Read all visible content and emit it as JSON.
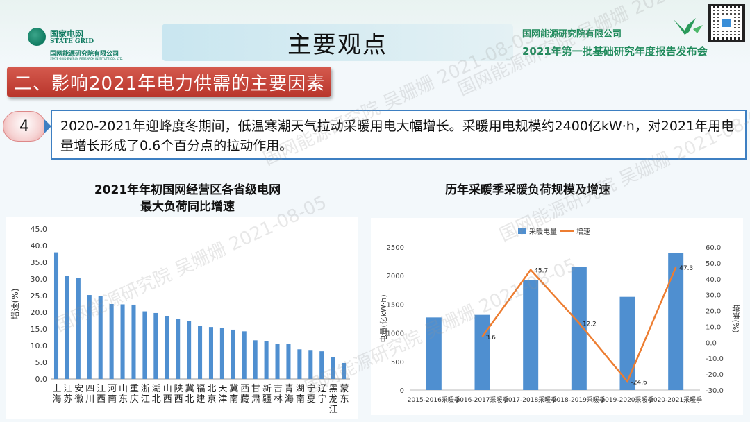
{
  "header": {
    "logo": {
      "cn": "国家电网",
      "en": "STATE GRID",
      "sub": "国网能源研究院有限公司",
      "sub_en": "STATE GRID ENERGY RESEARCH INSTITUTE CO., LTD."
    },
    "title": "主要观点",
    "org_name": "国网能源研究院有限公司",
    "event": "2021年第一批基础研究年度报告发布会"
  },
  "section": {
    "title": "二、影响2021年电力供需的主要因素"
  },
  "point": {
    "number": "4",
    "text": "2020-2021年迎峰度冬期间，低温寒潮天气拉动采暖用电大幅增长。采暖用电规模约2400亿kW·h，对2021年用电量增长形成了0.6个百分点的拉动作用。"
  },
  "watermark": "国网能源研究院 吴姗姗 2021-08-05",
  "chart_data": [
    {
      "type": "bar",
      "title": "2021年年初国网经营区各省级电网最大负荷同比增速",
      "title_line1": "2021年年初国网经营区各省级电网",
      "title_line2": "最大负荷同比增速",
      "ylabel": "增速(%)",
      "ylim": [
        0,
        45
      ],
      "yticks": [
        "0.0",
        "5.0",
        "10.0",
        "15.0",
        "20.0",
        "25.0",
        "30.0",
        "35.0",
        "40.0",
        "45.0"
      ],
      "categories": [
        "上海",
        "江苏",
        "安徽",
        "四川",
        "江西",
        "河南",
        "山东",
        "重庆",
        "浙江",
        "湖北",
        "山西",
        "陕西",
        "冀北",
        "福建",
        "北京",
        "天津",
        "冀南",
        "西藏",
        "甘肃",
        "新疆",
        "吉林",
        "青海",
        "湖南",
        "宁夏",
        "辽宁",
        "黑龙江",
        "蒙东"
      ],
      "values": [
        38.0,
        31.0,
        30.3,
        25.2,
        24.8,
        22.5,
        22.4,
        22.3,
        20.3,
        19.8,
        18.8,
        18.0,
        17.5,
        16.0,
        15.6,
        15.4,
        14.8,
        14.3,
        11.6,
        11.3,
        10.6,
        10.5,
        8.9,
        8.7,
        8.3,
        6.6,
        4.8
      ],
      "color": "#4f8fd0"
    },
    {
      "type": "bar",
      "title": "历年采暖季采暖负荷规模及增速",
      "categories": [
        "2015-2016采暖季",
        "2016-2017采暖季",
        "2017-2018采暖季",
        "2018-2019采暖季",
        "2019-2020采暖季",
        "2020-2021采暖季"
      ],
      "series": [
        {
          "name": "采暖电量",
          "type": "bar",
          "axis": "left",
          "values": [
            1270,
            1315,
            1920,
            2160,
            1630,
            2400
          ],
          "color": "#4f8fd0"
        },
        {
          "name": "增速",
          "type": "line",
          "axis": "right",
          "values": [
            null,
            3.6,
            45.7,
            12.2,
            -24.6,
            47.3
          ],
          "labels": [
            "",
            "3.6",
            "45.7",
            "12.2",
            "-24.6",
            "47.3"
          ],
          "color": "#ed7d31"
        }
      ],
      "ylabel": "电量(亿kW·h)",
      "y2label": "增速(%)",
      "ylim": [
        0,
        2500
      ],
      "y2lim": [
        -30,
        60
      ],
      "yticks": [
        "0",
        "500",
        "1000",
        "1500",
        "2000",
        "2500"
      ],
      "y2ticks": [
        "-30.0",
        "-20.0",
        "-10.0",
        "0.0",
        "10.0",
        "20.0",
        "30.0",
        "40.0",
        "50.0",
        "60.0"
      ],
      "legend": "top-center"
    }
  ]
}
